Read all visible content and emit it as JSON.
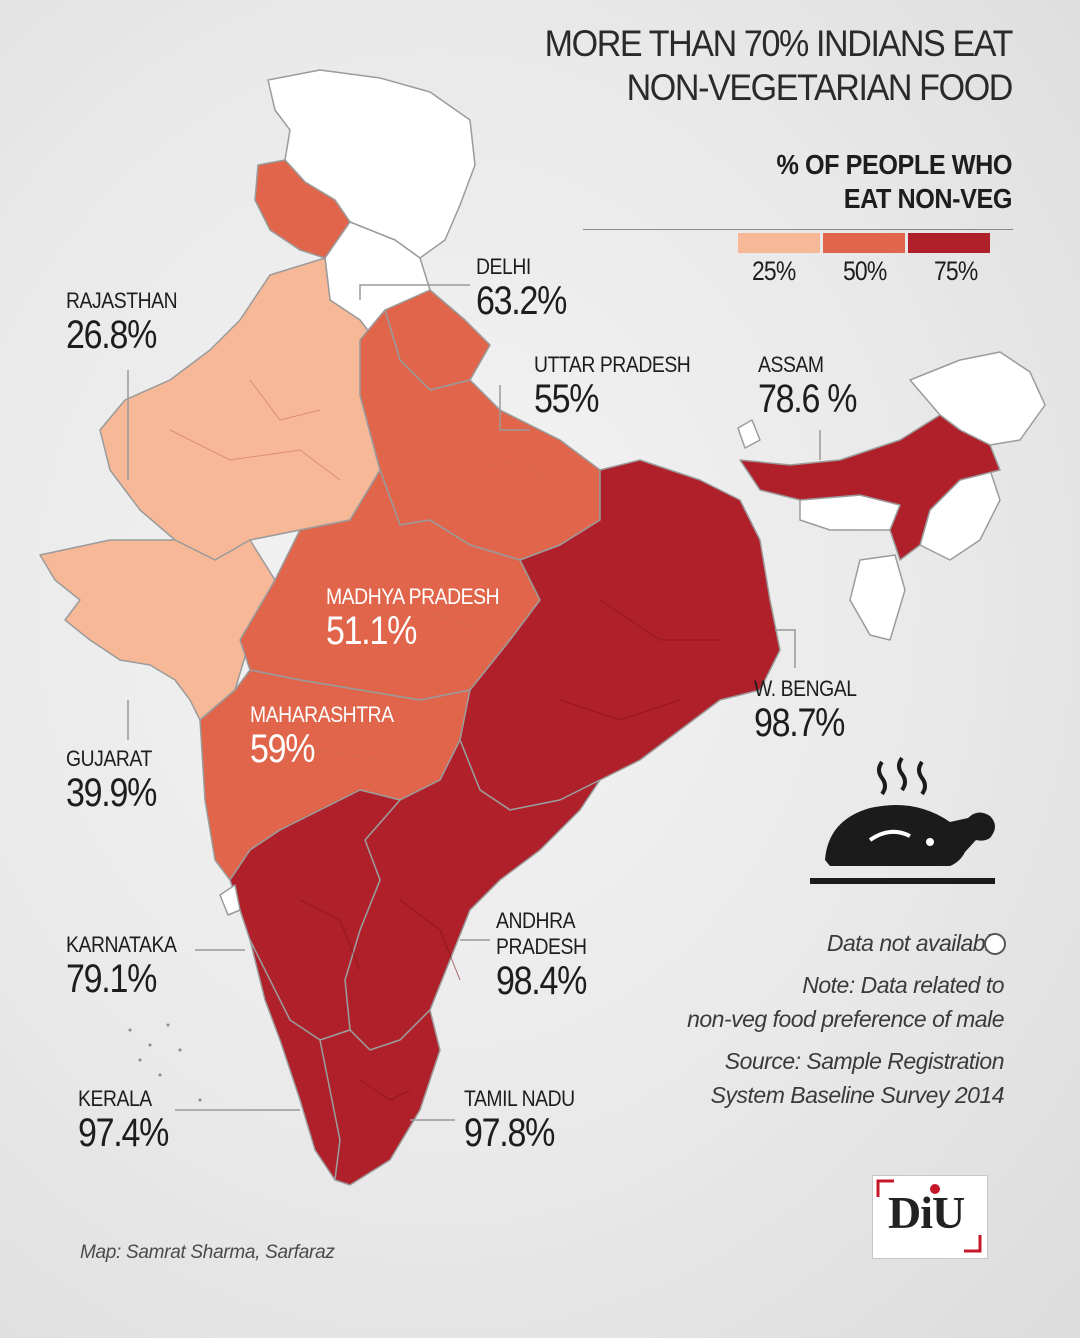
{
  "title_line1": "MORE THAN 70% INDIANS EAT",
  "title_line2": "NON-VEGETARIAN FOOD",
  "legend": {
    "title_line1": "% OF PEOPLE WHO",
    "title_line2": "EAT NON-VEG",
    "ticks": [
      "25%",
      "50%",
      "75%"
    ],
    "colors": [
      "#f7b898",
      "#e0654a",
      "#b0202a"
    ]
  },
  "states": {
    "delhi": {
      "name": "DELHI",
      "value": "63.2%"
    },
    "rajasthan": {
      "name": "RAJASTHAN",
      "value": "26.8%"
    },
    "uttar_pradesh": {
      "name": "UTTAR PRADESH",
      "value": "55%"
    },
    "assam": {
      "name": "ASSAM",
      "value": "78.6 %"
    },
    "madhya_pradesh": {
      "name": "MADHYA PRADESH",
      "value": "51.1%"
    },
    "maharashtra": {
      "name": "MAHARASHTRA",
      "value": "59%"
    },
    "w_bengal": {
      "name": "W. BENGAL",
      "value": "98.7%"
    },
    "gujarat": {
      "name": "GUJARAT",
      "value": "39.9%"
    },
    "karnataka": {
      "name": "KARNATAKA",
      "value": "79.1%"
    },
    "andhra_pradesh": {
      "name_line1": "ANDHRA",
      "name_line2": "PRADESH",
      "value": "98.4%"
    },
    "kerala": {
      "name": "KERALA",
      "value": "97.4%"
    },
    "tamil_nadu": {
      "name": "TAMIL NADU",
      "value": "97.8%"
    }
  },
  "no_data_label": "Data not available",
  "note_line1": "Note: Data related to",
  "note_line2": "non-veg food preference of male",
  "source_line1": "Source: Sample Registration",
  "source_line2": "System Baseline Survey 2014",
  "credit": "Map: Samrat Sharma, Sarfaraz",
  "logo_text": "DiU",
  "colors": {
    "low": "#f7b898",
    "mid": "#e0654a",
    "high": "#b0202a",
    "no_data": "#ffffff"
  },
  "icon": "roast-chicken-icon"
}
